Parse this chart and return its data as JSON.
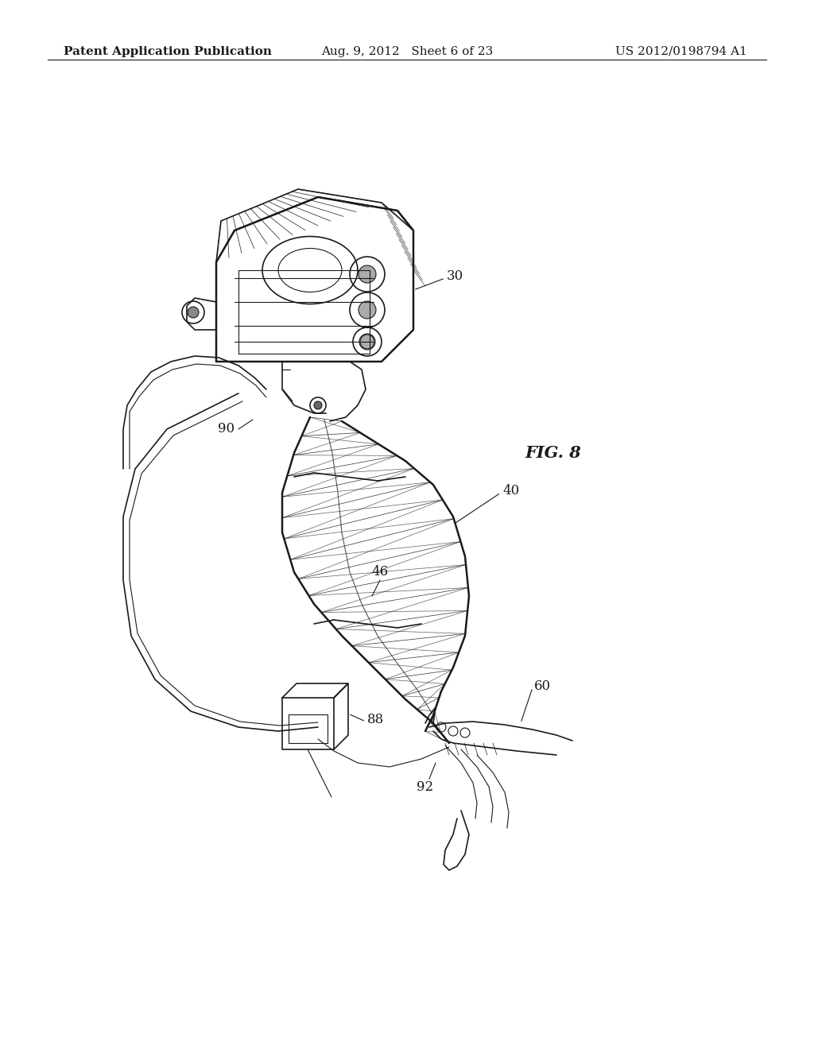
{
  "background_color": "#ffffff",
  "header": {
    "left": "Patent Application Publication",
    "center": "Aug. 9, 2012   Sheet 6 of 23",
    "right": "US 2012/0198794 A1"
  },
  "fig_label": "FIG. 8",
  "line_color": "#1a1a1a",
  "text_color": "#1a1a1a",
  "header_fontsize": 11,
  "label_fontsize": 12
}
